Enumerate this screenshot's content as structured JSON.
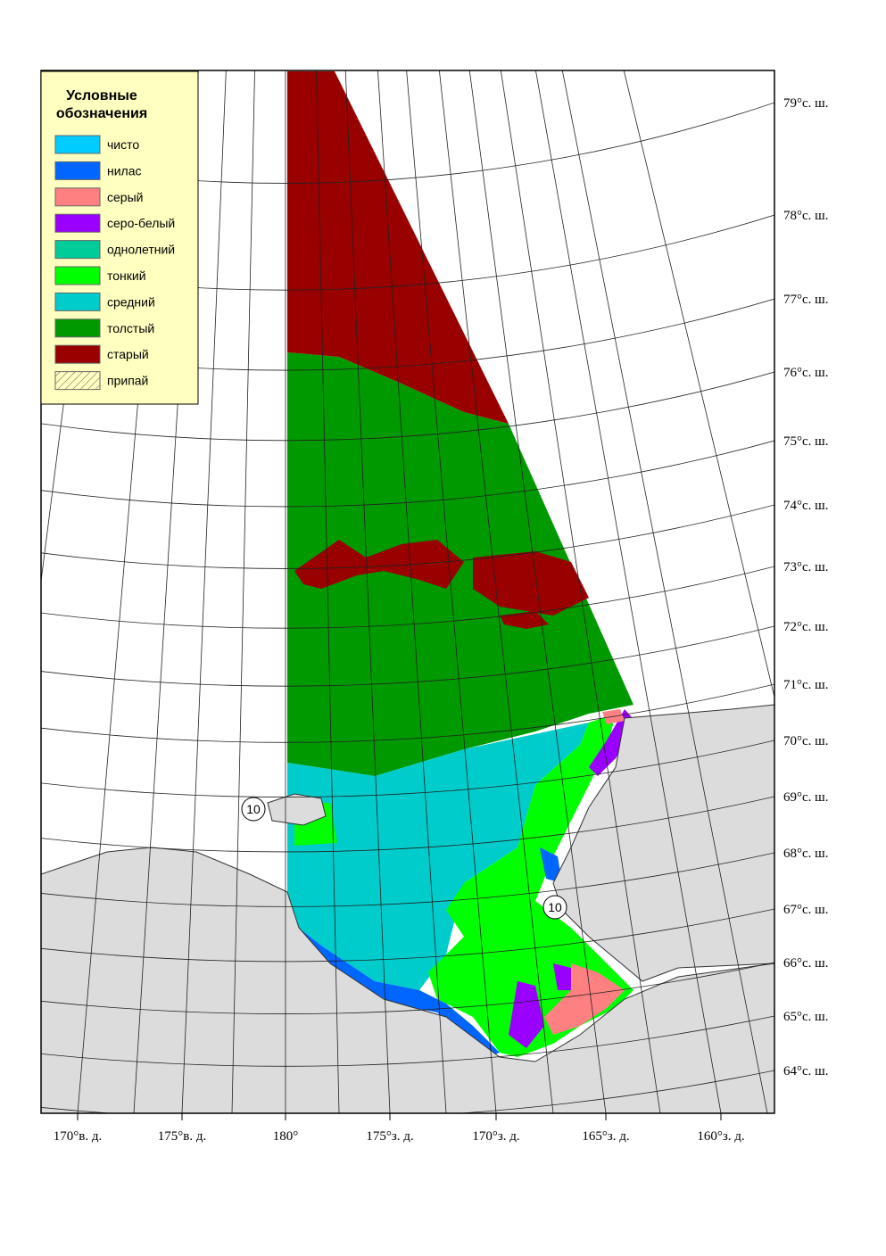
{
  "legend": {
    "title": [
      "Условные",
      "обозначения"
    ],
    "items": [
      {
        "label": "чисто",
        "color": "#00ccff"
      },
      {
        "label": "нилас",
        "color": "#0066ff"
      },
      {
        "label": "серый",
        "color": "#ff8080"
      },
      {
        "label": "серо-белый",
        "color": "#9900ff"
      },
      {
        "label": "однолетний",
        "color": "#00cc99"
      },
      {
        "label": "тонкий",
        "color": "#00ff00"
      },
      {
        "label": "средний",
        "color": "#00cccc"
      },
      {
        "label": "толстый",
        "color": "#009900"
      },
      {
        "label": "старый",
        "color": "#990000"
      },
      {
        "label": "припай",
        "hatched": true
      }
    ]
  },
  "latitude_labels": [
    "79°с. ш.",
    "78°с. ш.",
    "77°с. ш.",
    "76°с. ш.",
    "75°с. ш.",
    "74°с. ш.",
    "73°с. ш.",
    "72°с. ш.",
    "71°с. ш.",
    "70°с. ш.",
    "69°с. ш.",
    "68°с. ш.",
    "67°с. ш.",
    "66°с. ш.",
    "65°с. ш.",
    "64°с. ш."
  ],
  "longitude_labels": [
    "170°в. д.",
    "175°в. д.",
    "180°",
    "175°з. д.",
    "170°з. д.",
    "165°з. д.",
    "160°з. д."
  ],
  "annotations": [
    "10",
    "10"
  ]
}
